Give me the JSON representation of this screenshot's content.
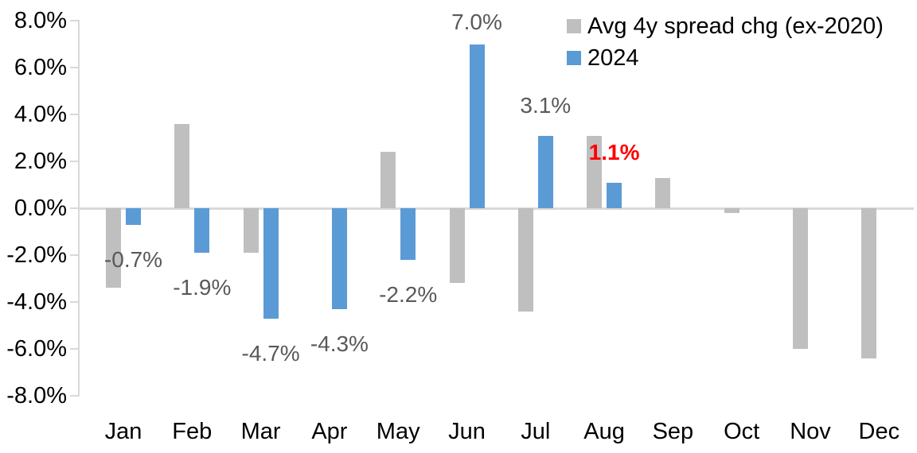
{
  "chart_data": {
    "type": "bar",
    "title": "",
    "xlabel": "",
    "ylabel": "",
    "categories": [
      "Jan",
      "Feb",
      "Mar",
      "Apr",
      "May",
      "Jun",
      "Jul",
      "Aug",
      "Sep",
      "Oct",
      "Nov",
      "Dec"
    ],
    "series": [
      {
        "name": "Avg 4y spread chg (ex-2020)",
        "color": "#BFBFBF",
        "values": [
          -3.4,
          3.6,
          -1.9,
          0.0,
          2.4,
          -3.2,
          -4.4,
          3.1,
          1.3,
          -0.2,
          -6.0,
          -6.4
        ]
      },
      {
        "name": "2024",
        "color": "#5B9BD5",
        "values": [
          -0.7,
          -1.9,
          -4.7,
          -4.3,
          -2.2,
          7.0,
          3.1,
          1.1,
          null,
          null,
          null,
          null
        ]
      }
    ],
    "ylim": [
      -8,
      8
    ],
    "y_ticks": [
      {
        "label": "8.0%",
        "value": 8
      },
      {
        "label": "6.0%",
        "value": 6
      },
      {
        "label": "4.0%",
        "value": 4
      },
      {
        "label": "2.0%",
        "value": 2
      },
      {
        "label": "0.0%",
        "value": 0
      },
      {
        "label": "-2.0%",
        "value": -2
      },
      {
        "label": "-4.0%",
        "value": -4
      },
      {
        "label": "-6.0%",
        "value": -6
      },
      {
        "label": "-8.0%",
        "value": -8
      }
    ],
    "grid": "zero-line-only",
    "legend_position": "top-right",
    "annotations": [
      {
        "category": "Jan",
        "series": "2024",
        "text": "-0.7%",
        "color": "#595959",
        "bold": false
      },
      {
        "category": "Feb",
        "series": "2024",
        "text": "-1.9%",
        "color": "#595959",
        "bold": false
      },
      {
        "category": "Mar",
        "series": "2024",
        "text": "-4.7%",
        "color": "#595959",
        "bold": false
      },
      {
        "category": "Apr",
        "series": "2024",
        "text": "-4.3%",
        "color": "#595959",
        "bold": false
      },
      {
        "category": "May",
        "series": "2024",
        "text": "-2.2%",
        "color": "#595959",
        "bold": false
      },
      {
        "category": "Jun",
        "series": "2024",
        "text": "7.0%",
        "color": "#595959",
        "bold": false
      },
      {
        "category": "Jul",
        "series": "2024",
        "text": "3.1%",
        "color": "#595959",
        "bold": false
      },
      {
        "category": "Aug",
        "series": "2024",
        "text": "1.1%",
        "color": "#FF0000",
        "bold": true
      }
    ]
  },
  "colors": {
    "axis_line": "#D9D9D9",
    "tick_text": "#000000",
    "data_label": "#595959",
    "highlight": "#FF0000",
    "background": "#FFFFFF"
  }
}
